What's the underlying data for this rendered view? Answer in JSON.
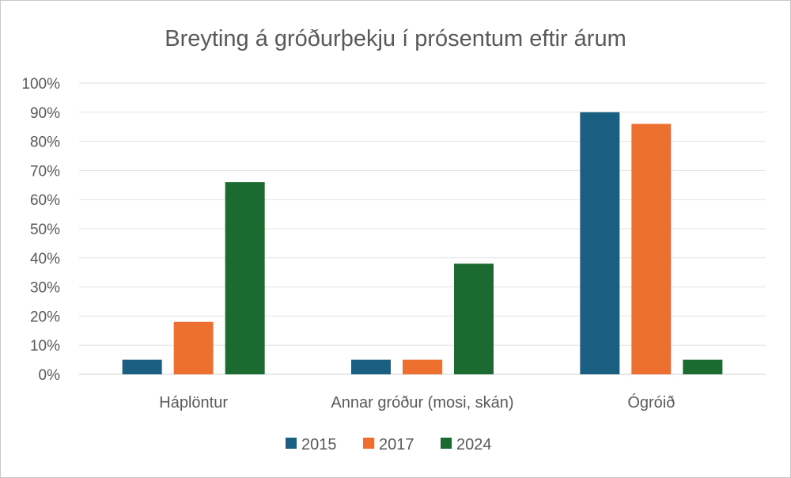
{
  "chart_data": {
    "type": "bar",
    "title": "Breyting á gróðurþekju í prósentum eftir árum",
    "categories": [
      "Háplöntur",
      "Annar gróður (mosi, skán)",
      "Ógróið"
    ],
    "series": [
      {
        "name": "2015",
        "color": "#1a5f82",
        "values": [
          5,
          5,
          90
        ]
      },
      {
        "name": "2017",
        "color": "#ed7031",
        "values": [
          18,
          5,
          86
        ]
      },
      {
        "name": "2024",
        "color": "#1b6a2f",
        "values": [
          66,
          38,
          5
        ]
      }
    ],
    "ylim": [
      0,
      100
    ],
    "yticks": [
      "0%",
      "10%",
      "20%",
      "30%",
      "40%",
      "50%",
      "60%",
      "70%",
      "80%",
      "90%",
      "100%"
    ],
    "grid": true,
    "legend": "bottom"
  }
}
